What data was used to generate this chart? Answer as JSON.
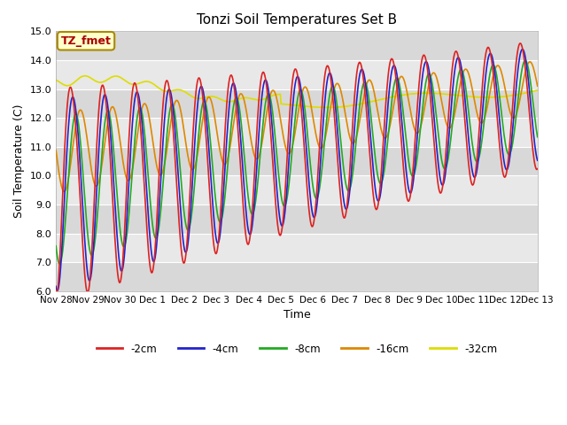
{
  "title": "Tonzi Soil Temperatures Set B",
  "xlabel": "Time",
  "ylabel": "Soil Temperature (C)",
  "ylim": [
    6.0,
    15.0
  ],
  "yticks": [
    6.0,
    7.0,
    8.0,
    9.0,
    10.0,
    11.0,
    12.0,
    13.0,
    14.0,
    15.0
  ],
  "annotation_text": "TZ_fmet",
  "annotation_color": "#aa0000",
  "annotation_bg": "#ffffcc",
  "annotation_border": "#aa8800",
  "series_colors": {
    "-2cm": "#dd2222",
    "-4cm": "#2222cc",
    "-8cm": "#22aa22",
    "-16cm": "#dd8800",
    "-32cm": "#dddd00"
  },
  "legend_labels": [
    "-2cm",
    "-4cm",
    "-8cm",
    "-16cm",
    "-32cm"
  ],
  "xtick_labels": [
    "Nov 28",
    "Nov 29",
    "Nov 30",
    "Dec 1",
    "Dec 2",
    "Dec 3",
    "Dec 4",
    "Dec 5",
    "Dec 6",
    "Dec 7",
    "Dec 8",
    "Dec 9",
    "Dec 10",
    "Dec 11",
    "Dec 12",
    "Dec 13"
  ],
  "n_days": 15,
  "ppd": 48,
  "figsize": [
    6.4,
    4.8
  ],
  "dpi": 100
}
